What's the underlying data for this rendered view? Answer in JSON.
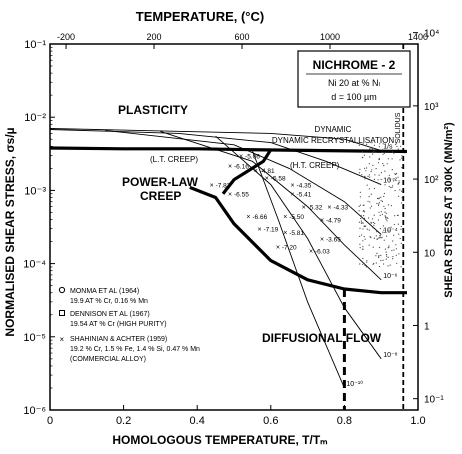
{
  "chart_data": {
    "type": "line",
    "title": "NICHROME - 2",
    "subtitle_lines": [
      "Ni 20 at % Nₗ",
      "d = 100 µm"
    ],
    "top_axis": {
      "label": "TEMPERATURE, (°C)",
      "ticks": [
        -200,
        200,
        600,
        1000,
        1400
      ],
      "tick_labels": [
        "-200",
        "200",
        "600",
        "1000",
        "1400"
      ]
    },
    "x_axis": {
      "label": "HOMOLOGOUS TEMPERATURE, T/Tₘ",
      "range": [
        0,
        1.0
      ],
      "ticks": [
        0,
        0.2,
        0.4,
        0.6,
        0.8,
        1.0
      ],
      "tick_labels": [
        "0",
        "0.2",
        "0.4",
        "0.6",
        "0.8",
        "1.0"
      ]
    },
    "y_axis": {
      "label": "NORMALISED SHEAR STRESS, σs/µ",
      "scale": "log",
      "range": [
        1e-06,
        0.1
      ],
      "ticks": [
        1e-06,
        1e-05,
        0.0001,
        0.001,
        0.01,
        0.1
      ],
      "tick_labels": [
        "10⁻⁶",
        "10⁻⁵",
        "10⁻⁴",
        "10⁻³",
        "10⁻²",
        "10⁻¹"
      ]
    },
    "right_axis": {
      "label": "SHEAR STRESS AT 300K (MN/m²)",
      "scale": "log",
      "ticks": [
        10000,
        1000,
        100,
        10,
        1,
        0.1
      ],
      "tick_labels": [
        "10⁴",
        "10³",
        "10²",
        "10",
        "1",
        "10⁻¹"
      ]
    },
    "region_labels": [
      "PLASTICITY",
      "DYNAMIC RECRYSTALLISATION",
      "(L.T. CREEP)",
      "(H.T. CREEP)",
      "POWER-LAW",
      "CREEP",
      "DIFFUSIONAL FLOW",
      "SOLIDUS"
    ],
    "strain_rate_labels": [
      "1/s",
      "10⁻²",
      "10⁻⁴",
      "10⁻⁶",
      "10⁻⁸",
      "10⁻¹⁰"
    ],
    "boundary_lines": [
      {
        "name": "plasticity / power-law",
        "x": [
          0,
          0.2,
          0.4,
          0.55,
          0.75,
          0.97
        ],
        "y": [
          0.0038,
          0.0037,
          0.0037,
          0.0036,
          0.0035,
          0.0034
        ]
      },
      {
        "name": "power-law / diffusional",
        "x": [
          0.38,
          0.45,
          0.5,
          0.6,
          0.7,
          0.8,
          0.9,
          0.97
        ],
        "y": [
          0.0011,
          0.0008,
          0.00035,
          0.00011,
          6e-05,
          4.5e-05,
          4e-05,
          4e-05
        ]
      },
      {
        "name": "L.T. creep / H.T. creep",
        "x": [
          0.6,
          0.58,
          0.5,
          0.47
        ],
        "y": [
          0.0036,
          0.0025,
          0.0014,
          0.0009
        ]
      }
    ],
    "strain_rate_contours": [
      {
        "label": "1/s",
        "x": [
          0.0,
          0.3,
          0.6,
          0.8,
          0.9
        ],
        "y": [
          0.007,
          0.0065,
          0.006,
          0.005,
          0.0035
        ]
      },
      {
        "label": "10⁻²",
        "x": [
          0.0,
          0.35,
          0.6,
          0.75,
          0.9
        ],
        "y": [
          0.0068,
          0.006,
          0.0045,
          0.0025,
          0.0012
        ]
      },
      {
        "label": "10⁻⁴",
        "x": [
          0.15,
          0.5,
          0.65,
          0.8,
          0.9
        ],
        "y": [
          0.0066,
          0.0042,
          0.002,
          0.0007,
          0.00025
        ]
      },
      {
        "label": "10⁻⁶",
        "x": [
          0.3,
          0.55,
          0.7,
          0.8,
          0.9
        ],
        "y": [
          0.0064,
          0.0025,
          0.0006,
          0.00018,
          6e-05
        ]
      },
      {
        "label": "10⁻⁸",
        "x": [
          0.45,
          0.6,
          0.7,
          0.8,
          0.9
        ],
        "y": [
          0.0055,
          0.0012,
          0.00022,
          2.5e-05,
          5e-06
        ]
      },
      {
        "label": "10⁻¹⁰",
        "x": [
          0.55,
          0.62,
          0.7,
          0.8
        ],
        "y": [
          0.0035,
          0.0004,
          3e-05,
          2e-06
        ]
      }
    ],
    "data_labels": [
      "-6.16",
      "-5.06",
      "-4.81",
      "-5.58",
      "-7.82",
      "-6.55",
      "-4.35",
      "-5.41",
      "-5.32",
      "-4.33",
      "-6.66",
      "-5.50",
      "-4.79",
      "-7.19",
      "-5.81",
      "-3.65",
      "-7.20",
      "-6.03"
    ],
    "legend": {
      "placement": "bottom-left",
      "entries": [
        {
          "symbol": "circle",
          "title": "MONMA ET AL (1964)",
          "detail": "19.9 AT % Cr, 0.16 % Mn"
        },
        {
          "symbol": "square",
          "title": "DENNISON ET AL (1967)",
          "detail": "19.54 AT % Cr (HIGH PURITY)"
        },
        {
          "symbol": "cross",
          "title": "SHAHINIAN & ACHTER (1959)",
          "detail": "19.2 % Cr, 1.5 % Fe, 1.4 % Si, 0.47 % Mn",
          "detail2": "(COMMERCIAL ALLOY)"
        }
      ]
    },
    "grid": false,
    "colors": {
      "ink": "#000000",
      "background": "#ffffff"
    }
  }
}
